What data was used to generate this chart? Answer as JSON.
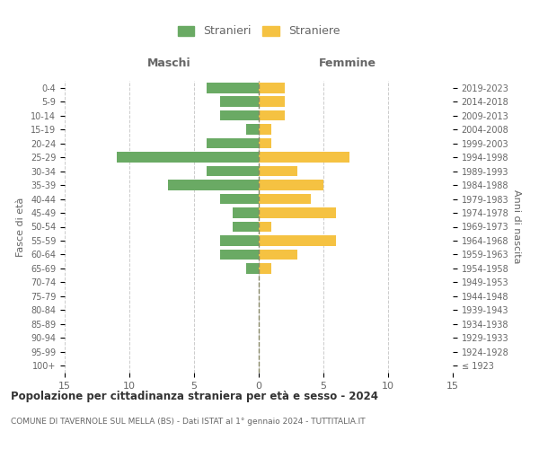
{
  "age_groups": [
    "100+",
    "95-99",
    "90-94",
    "85-89",
    "80-84",
    "75-79",
    "70-74",
    "65-69",
    "60-64",
    "55-59",
    "50-54",
    "45-49",
    "40-44",
    "35-39",
    "30-34",
    "25-29",
    "20-24",
    "15-19",
    "10-14",
    "5-9",
    "0-4"
  ],
  "birth_years": [
    "≤ 1923",
    "1924-1928",
    "1929-1933",
    "1934-1938",
    "1939-1943",
    "1944-1948",
    "1949-1953",
    "1954-1958",
    "1959-1963",
    "1964-1968",
    "1969-1973",
    "1974-1978",
    "1979-1983",
    "1984-1988",
    "1989-1993",
    "1994-1998",
    "1999-2003",
    "2004-2008",
    "2009-2013",
    "2014-2018",
    "2019-2023"
  ],
  "maschi": [
    0,
    0,
    0,
    0,
    0,
    0,
    0,
    1,
    3,
    3,
    2,
    2,
    3,
    7,
    4,
    11,
    4,
    1,
    3,
    3,
    4
  ],
  "femmine": [
    0,
    0,
    0,
    0,
    0,
    0,
    0,
    1,
    3,
    6,
    1,
    6,
    4,
    5,
    3,
    7,
    1,
    1,
    2,
    2,
    2
  ],
  "color_maschi": "#6aaa64",
  "color_femmine": "#f5c242",
  "title": "Popolazione per cittadinanza straniera per età e sesso - 2024",
  "subtitle": "COMUNE DI TAVERNOLE SUL MELLA (BS) - Dati ISTAT al 1° gennaio 2024 - TUTTITALIA.IT",
  "ylabel_left": "Fasce di età",
  "ylabel_right": "Anni di nascita",
  "legend_maschi": "Stranieri",
  "legend_femmine": "Straniere",
  "header_maschi": "Maschi",
  "header_femmine": "Femmine",
  "xlim": 15,
  "background_color": "#ffffff",
  "grid_color": "#cccccc",
  "text_color": "#666666"
}
